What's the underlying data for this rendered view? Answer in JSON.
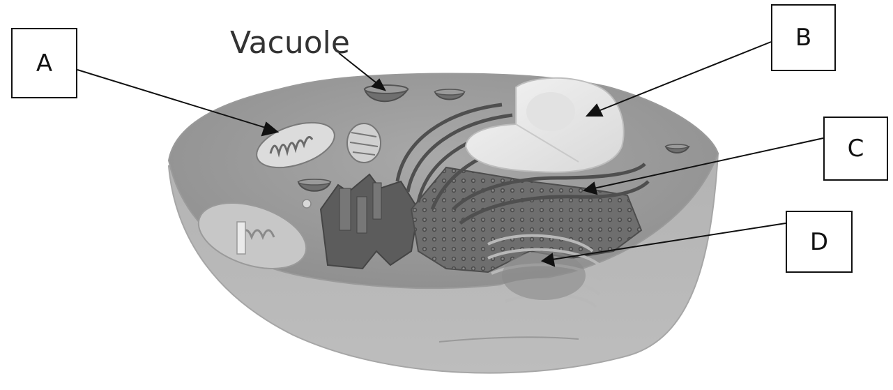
{
  "labels": {
    "vacuole": "Vacuole",
    "a": "A",
    "b": "B",
    "c": "C",
    "d": "D"
  }
}
